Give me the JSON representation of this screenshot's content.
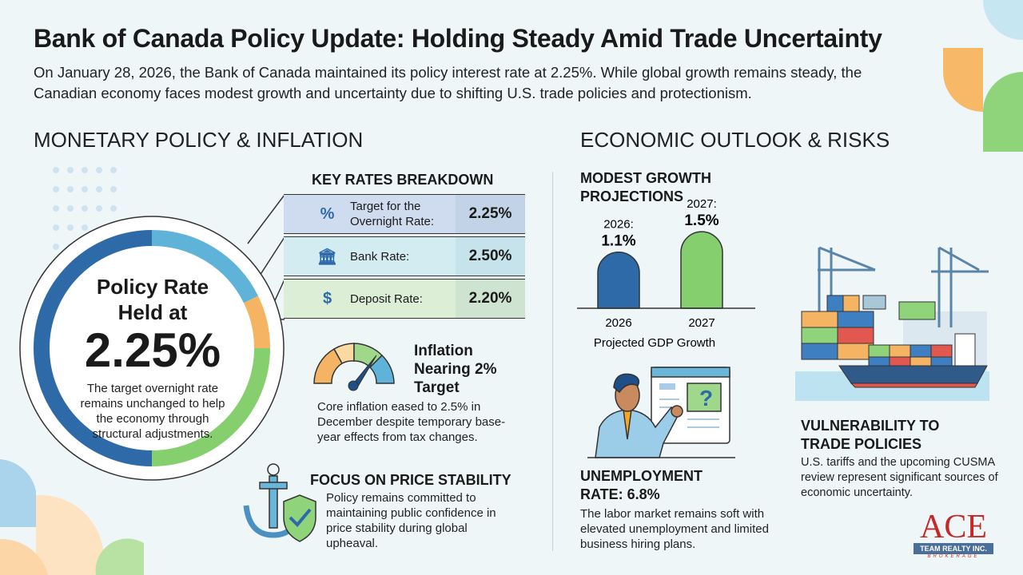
{
  "title": "Bank of Canada Policy Update: Holding Steady Amid Trade Uncertainty",
  "subtitle": "On January 28, 2026, the Bank of Canada maintained its policy interest rate at 2.25%. While global growth remains steady, the Canadian economy faces modest growth and uncertainty due to shifting U.S. trade policies and protectionism.",
  "left": {
    "heading": "MONETARY POLICY & INFLATION",
    "policy": {
      "line1": "Policy Rate",
      "line2": "Held at",
      "rate": "2.25%",
      "desc": "The target overnight rate remains unchanged to help the economy through structural adjustments."
    },
    "key_rates": {
      "heading": "KEY RATES BREAKDOWN",
      "rows": [
        {
          "label": "Target for the Overnight Rate:",
          "value": "2.25%",
          "icon": "percent-lock-icon",
          "color": "#cfdcef"
        },
        {
          "label": "Bank Rate:",
          "value": "2.50%",
          "icon": "bank-icon",
          "color": "#d3ecf2"
        },
        {
          "label": "Deposit Rate:",
          "value": "2.20%",
          "icon": "hand-coin-icon",
          "color": "#dcefd6"
        }
      ]
    },
    "inflation": {
      "title": "Inflation Nearing 2% Target",
      "desc": "Core inflation eased to 2.5% in December despite temporary base-year effects from tax changes."
    },
    "stability": {
      "title": "FOCUS ON PRICE STABILITY",
      "desc": "Policy remains committed to maintaining public confidence in price stability during global upheaval."
    }
  },
  "right": {
    "heading": "ECONOMIC OUTLOOK & RISKS",
    "growth": {
      "title": "MODEST GROWTH PROJECTIONS"
    },
    "unemployment": {
      "title": "UNEMPLOYMENT RATE: 6.8%",
      "desc": "The labor market remains soft with elevated unemployment and limited business hiring plans."
    },
    "trade": {
      "title": "VULNERABILITY TO TRADE POLICIES",
      "desc": "U.S. tariffs and the upcoming CUSMA review represent significant sources of economic uncertainty."
    }
  },
  "chart_data": {
    "type": "bar",
    "categories": [
      "2026",
      "2027"
    ],
    "values": [
      1.1,
      1.5
    ],
    "data_labels": [
      "2026:",
      "2027:"
    ],
    "value_labels": [
      "1.1%",
      "1.5%"
    ],
    "xlabel": "Projected GDP Growth",
    "colors": [
      "#2f6aa8",
      "#86cf6e"
    ],
    "ylim": [
      0,
      1.8
    ]
  },
  "logo": {
    "name": "ACE",
    "line2": "TEAM REALTY INC.",
    "line3": "BROKERAGE"
  },
  "colors": {
    "dark_blue": "#2f6aa8",
    "light_blue": "#5fb3d9",
    "orange": "#f5b463",
    "green": "#86cf6e",
    "background": "#eef6f8"
  }
}
